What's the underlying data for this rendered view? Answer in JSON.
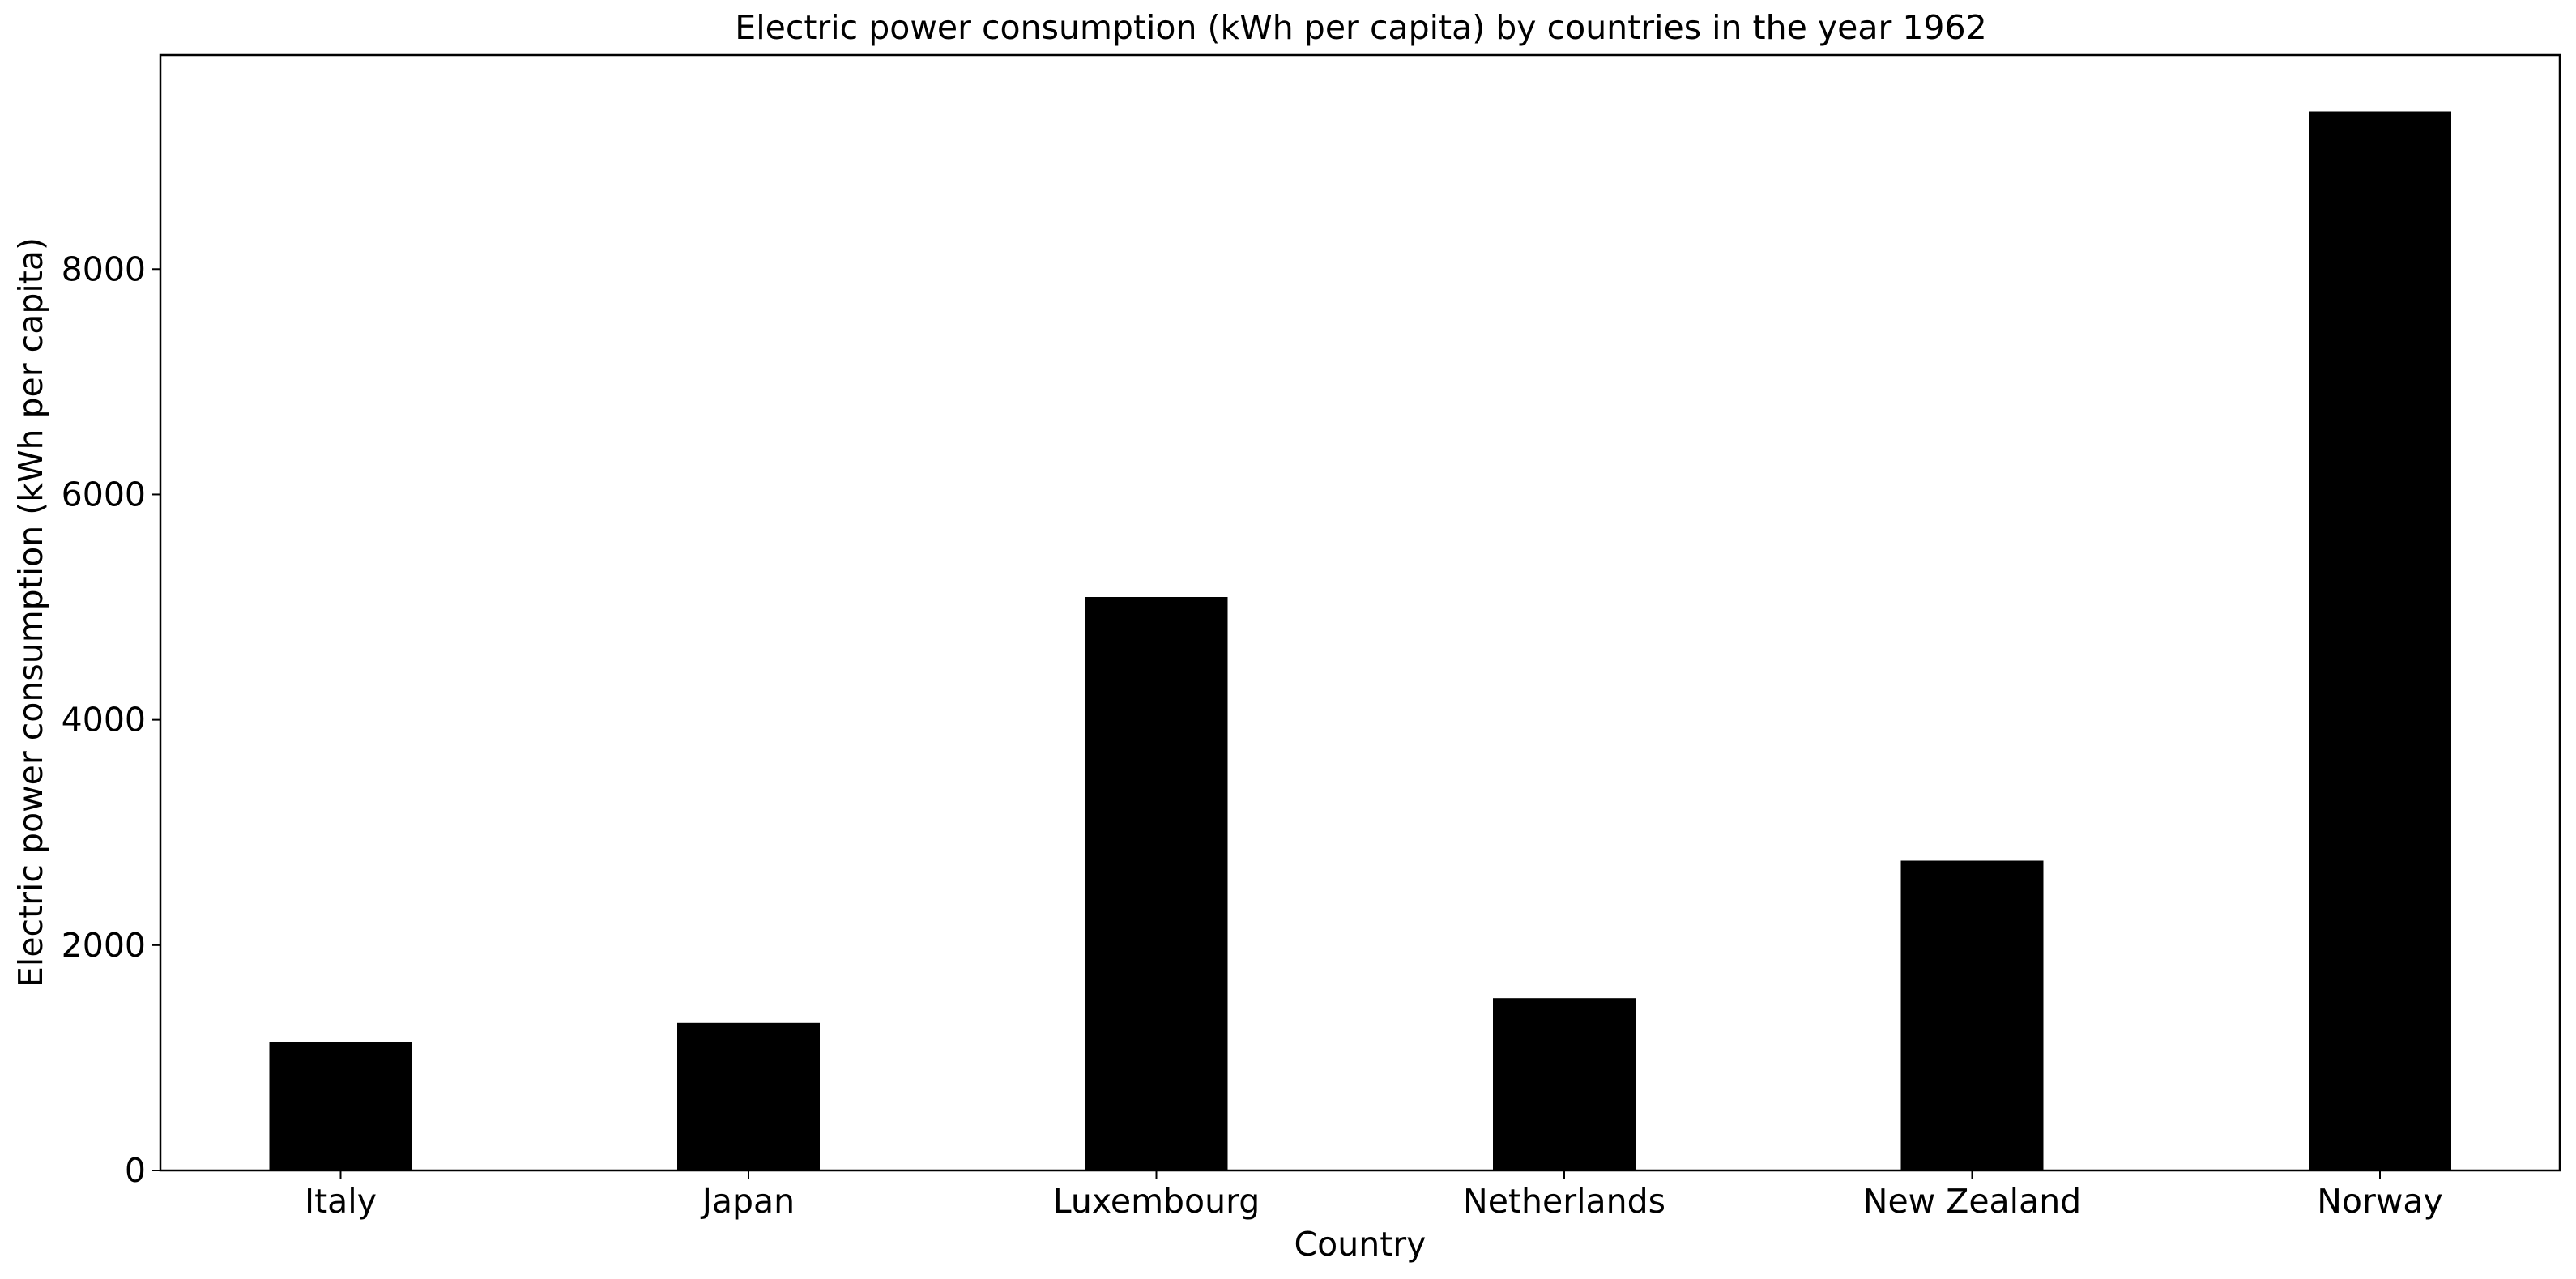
{
  "chart_data": {
    "type": "bar",
    "title": "Electric power consumption (kWh per capita) by countries in the year 1962",
    "xlabel": "Country",
    "ylabel": "Electric power consumption (kWh per capita)",
    "categories": [
      "Italy",
      "Japan",
      "Luxembourg",
      "Netherlands",
      "New Zealand",
      "Norway"
    ],
    "values": [
      1140,
      1310,
      5090,
      1530,
      2750,
      9400
    ],
    "ylim": [
      0,
      9900
    ],
    "yticks": [
      0,
      2000,
      4000,
      6000,
      8000
    ],
    "bar_color": "#000000",
    "grid": false,
    "legend": "none"
  }
}
